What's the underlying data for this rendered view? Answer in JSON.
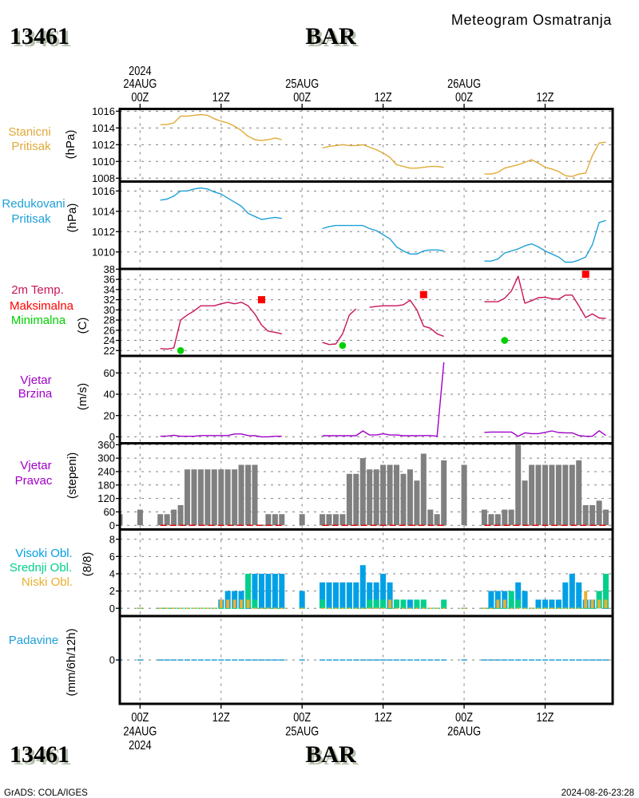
{
  "header": {
    "station_id": "13461",
    "station_name": "BAR",
    "title": "Meteogram Osmatranja"
  },
  "footer": {
    "station_id": "13461",
    "station_name": "BAR",
    "credit": "GrADS: COLA/IGES",
    "timestamp": "2024-08-26-23:28"
  },
  "chart_data": {
    "type": "line",
    "title": "Meteogram Osmatranja",
    "station": "13461 BAR",
    "grid_color": "#808080",
    "x": {
      "unit": "hours since 00Z 24AUG2024",
      "range": [
        -3,
        70
      ],
      "grid": true,
      "ticks": [
        {
          "hour": 0,
          "time": "00Z",
          "date": "24AUG",
          "year": "2024"
        },
        {
          "hour": 12,
          "time": "12Z",
          "date": "",
          "year": ""
        },
        {
          "hour": 24,
          "time": "00Z",
          "date": "25AUG",
          "year": ""
        },
        {
          "hour": 36,
          "time": "12Z",
          "date": "",
          "year": ""
        },
        {
          "hour": 48,
          "time": "00Z",
          "date": "26AUG",
          "year": ""
        },
        {
          "hour": 60,
          "time": "12Z",
          "date": "",
          "year": ""
        }
      ]
    },
    "hours": [
      -3,
      0,
      3,
      4,
      5,
      6,
      7,
      8,
      9,
      10,
      11,
      12,
      13,
      14,
      15,
      16,
      17,
      18,
      19,
      20,
      21,
      24,
      27,
      28,
      29,
      30,
      31,
      32,
      33,
      34,
      35,
      36,
      37,
      38,
      39,
      40,
      41,
      42,
      43,
      44,
      45,
      48,
      51,
      52,
      53,
      54,
      55,
      56,
      57,
      58,
      59,
      60,
      61,
      62,
      63,
      64,
      65,
      66,
      67,
      68,
      69
    ],
    "panels": [
      {
        "id": "station-pressure",
        "labels": [
          {
            "text": "Stanicni",
            "color": "#e0aa38"
          },
          {
            "text": "Pritisak",
            "color": "#e0aa38"
          }
        ],
        "unit": "(hPa)",
        "ylim": [
          1007.6,
          1016.27
        ],
        "ticks": [
          1016,
          1014,
          1012,
          1010,
          1008
        ],
        "series": [
          {
            "id": "station-pressure",
            "name": "Stanicni Pritisak",
            "type": "line",
            "color": "#e0aa38",
            "values": [
              null,
              null,
              1014.4,
              1014.4,
              1014.6,
              1015.4,
              1015.4,
              1015.5,
              1015.6,
              1015.5,
              1015.1,
              1014.8,
              1014.6,
              1014.2,
              1013.7,
              1013.0,
              1012.6,
              1012.5,
              1012.6,
              1012.8,
              1012.6,
              null,
              1011.6,
              1011.8,
              1011.9,
              1012.0,
              1011.9,
              1011.9,
              1012.0,
              1011.7,
              1011.4,
              1011.0,
              1010.5,
              1009.6,
              1009.4,
              1009.2,
              1009.2,
              1009.3,
              1009.4,
              1009.4,
              1009.3,
              null,
              1008.5,
              1008.5,
              1008.7,
              1009.2,
              1009.4,
              1009.6,
              1009.9,
              1010.2,
              1009.8,
              1009.3,
              1009.1,
              1008.8,
              1008.3,
              1008.2,
              1008.5,
              1008.6,
              1010.7,
              1012.2,
              1012.3
            ]
          }
        ]
      },
      {
        "id": "sea-level-pressure",
        "labels": [
          {
            "text": "Redukovani",
            "color": "#1ea0d8"
          },
          {
            "text": "Pritisak",
            "color": "#1ea0d8"
          }
        ],
        "unit": "(hPa)",
        "ylim": [
          1008.33,
          1016.93
        ],
        "ticks": [
          1016,
          1014,
          1012,
          1010
        ],
        "series": [
          {
            "id": "sea-level-pressure",
            "name": "Redukovani Pritisak",
            "type": "line",
            "color": "#1ea0d8",
            "values": [
              null,
              null,
              1015.1,
              1015.2,
              1015.5,
              1016.0,
              1016.0,
              1016.2,
              1016.3,
              1016.2,
              1015.9,
              1015.7,
              1015.3,
              1014.9,
              1014.5,
              1013.8,
              1013.5,
              1013.2,
              1013.3,
              1013.4,
              1013.3,
              null,
              1012.3,
              1012.5,
              1012.6,
              1012.6,
              1012.6,
              1012.6,
              1012.6,
              1012.3,
              1012.1,
              1011.7,
              1011.3,
              1010.5,
              1010.1,
              1009.8,
              1009.8,
              1010.1,
              1010.2,
              1010.2,
              1010.1,
              null,
              1009.1,
              1009.1,
              1009.3,
              1009.9,
              1010.1,
              1010.3,
              1010.6,
              1010.8,
              1010.5,
              1010.1,
              1009.8,
              1009.5,
              1009.0,
              1009.0,
              1009.2,
              1009.5,
              1010.7,
              1012.9,
              1013.1
            ]
          }
        ]
      },
      {
        "id": "temperature",
        "labels": [
          {
            "text": "2m Temp.",
            "color": "#c8145a"
          },
          {
            "text": "Maksimalna",
            "color": "#ff0000"
          },
          {
            "text": "Minimalna",
            "color": "#00d000"
          }
        ],
        "unit": "(C)",
        "ylim": [
          20.95,
          38.05
        ],
        "ticks": [
          38,
          36,
          34,
          32,
          30,
          28,
          26,
          24,
          22
        ],
        "series": [
          {
            "id": "temp-2m",
            "name": "2m Temp.",
            "type": "line",
            "color": "#c8145a",
            "values": [
              null,
              null,
              22.4,
              22.3,
              22.5,
              28.0,
              29.0,
              29.8,
              30.8,
              30.8,
              30.8,
              31.2,
              31.5,
              31.2,
              31.5,
              30.8,
              29.2,
              27.0,
              25.8,
              25.6,
              25.3,
              null,
              23.6,
              23.2,
              23.3,
              25.3,
              29.0,
              30.2,
              null,
              30.5,
              30.7,
              30.8,
              30.8,
              30.8,
              31.0,
              31.9,
              30.0,
              26.8,
              26.4,
              25.3,
              24.8,
              null,
              31.6,
              31.6,
              31.6,
              32.3,
              33.7,
              36.6,
              31.3,
              31.8,
              32.4,
              32.5,
              32.2,
              32.1,
              32.9,
              32.9,
              30.8,
              28.5,
              29.2,
              28.4,
              28.3
            ]
          },
          {
            "id": "temp-max",
            "name": "Maksimalna",
            "type": "points",
            "marker": "square",
            "color": "#ff0000",
            "points": [
              {
                "hour": 18,
                "value": 32
              },
              {
                "hour": 42,
                "value": 33
              },
              {
                "hour": 66,
                "value": 37
              }
            ]
          },
          {
            "id": "temp-min",
            "name": "Minimalna",
            "type": "points",
            "marker": "circle",
            "color": "#00d000",
            "points": [
              {
                "hour": 6,
                "value": 22
              },
              {
                "hour": 30,
                "value": 23
              },
              {
                "hour": 54,
                "value": 24
              }
            ]
          }
        ]
      },
      {
        "id": "wind-speed",
        "labels": [
          {
            "text": "Vjetar",
            "color": "#a000c8"
          },
          {
            "text": "Brzina",
            "color": "#a000c8"
          }
        ],
        "unit": "(m/s)",
        "ylim": [
          -6.1,
          76.0
        ],
        "ticks": [
          60,
          40,
          20,
          0
        ],
        "series": [
          {
            "id": "wind-speed",
            "name": "Vjetar Brzina",
            "type": "line",
            "color": "#a000c8",
            "values": [
              null,
              null,
              0.5,
              0.7,
              1.5,
              0.5,
              0.5,
              0.5,
              1.2,
              1.2,
              1.2,
              1.2,
              1.2,
              2.7,
              2.7,
              1.2,
              1.0,
              0.0,
              0.0,
              0.5,
              0.5,
              null,
              1.0,
              1.0,
              1.0,
              1.0,
              1.0,
              1.0,
              5.5,
              1.7,
              1.7,
              2.8,
              1.7,
              1.7,
              1.0,
              1.0,
              1.0,
              1.2,
              1.2,
              0.5,
              70.0,
              null,
              4.2,
              4.5,
              4.5,
              4.5,
              4.5,
              0.5,
              3.7,
              3.0,
              3.0,
              4.2,
              5.5,
              4.0,
              3.7,
              3.7,
              1.2,
              0.5,
              0.5,
              5.7,
              1.2
            ]
          }
        ]
      },
      {
        "id": "wind-direction",
        "labels": [
          {
            "text": "Vjetar",
            "color": "#a000c8"
          },
          {
            "text": "Pravac",
            "color": "#a000c8"
          }
        ],
        "unit": "(stepeni)",
        "ylim": [
          -18.6,
          366.4
        ],
        "ticks": [
          360,
          300,
          240,
          180,
          120,
          60,
          0
        ],
        "series": [
          {
            "id": "wind-direction",
            "name": "Vjetar Pravac",
            "type": "bar",
            "color": "#808080",
            "values": [
              50,
              70,
              50,
              50,
              70,
              90,
              250,
              250,
              250,
              250,
              250,
              250,
              250,
              250,
              270,
              270,
              270,
              0,
              50,
              50,
              50,
              50,
              50,
              50,
              50,
              50,
              230,
              230,
              300,
              250,
              250,
              270,
              270,
              270,
              230,
              250,
              200,
              320,
              70,
              50,
              290,
              270,
              70,
              50,
              50,
              70,
              70,
              360,
              200,
              270,
              270,
              270,
              270,
              270,
              270,
              270,
              290,
              90,
              90,
              110,
              70
            ]
          },
          {
            "id": "wind-zero",
            "name": "zero reference",
            "type": "dashed-line",
            "color": "#e00000",
            "values": [
              null,
              null,
              0,
              0,
              0,
              0,
              0,
              0,
              0,
              0,
              0,
              0,
              0,
              0,
              0,
              0,
              0,
              0,
              0,
              0,
              0,
              null,
              0,
              0,
              0,
              0,
              0,
              0,
              0,
              0,
              0,
              0,
              0,
              0,
              0,
              0,
              0,
              0,
              0,
              0,
              0,
              null,
              0,
              0,
              0,
              0,
              0,
              0,
              0,
              0,
              0,
              0,
              0,
              0,
              0,
              0,
              0,
              0,
              0,
              0,
              0
            ]
          }
        ]
      },
      {
        "id": "clouds",
        "labels": [
          {
            "text": "Visoki Obl.",
            "color": "#00a0e6"
          },
          {
            "text": "Srednji Obl.",
            "color": "#00d08c"
          },
          {
            "text": "Niski Obl.",
            "color": "#e8b030"
          }
        ],
        "unit": "(8/8)",
        "ylim": [
          -0.9,
          9.13
        ],
        "ticks": [
          8,
          6,
          4,
          2,
          0
        ],
        "series": [
          {
            "id": "high",
            "name": "Visoki Obl.",
            "type": "bar",
            "color": "#00a0e6",
            "values": [
              0,
              0,
              0,
              0,
              0,
              0,
              0,
              0,
              0,
              0,
              0,
              1,
              2,
              2,
              2,
              0,
              4,
              4,
              4,
              4,
              4,
              2,
              3,
              3,
              3,
              3,
              3,
              3,
              5,
              3,
              3,
              4,
              3,
              1,
              0,
              1,
              0,
              0,
              0,
              0,
              0,
              0,
              0,
              2,
              2,
              2,
              0,
              3,
              2,
              0,
              1,
              1,
              1,
              1,
              3,
              4,
              3,
              1,
              1,
              1,
              0
            ]
          },
          {
            "id": "medium",
            "name": "Srednji Obl.",
            "type": "bar",
            "color": "#00d08c",
            "values": [
              0,
              0,
              0,
              0,
              0,
              0,
              0,
              0,
              0,
              0,
              0,
              0,
              0,
              0,
              0,
              4,
              1,
              0,
              0,
              0,
              0,
              0,
              1,
              0,
              0,
              0,
              0,
              0,
              0,
              1,
              1,
              1,
              0,
              1,
              1,
              0,
              1,
              1,
              0,
              0,
              1,
              0,
              0,
              0,
              0,
              0,
              2,
              1,
              0,
              0,
              0,
              0,
              0,
              0,
              0,
              0,
              0,
              0,
              0,
              2,
              4
            ]
          },
          {
            "id": "low",
            "name": "Niski Obl.",
            "type": "bar",
            "color": "#e8b030",
            "values": [
              0,
              0,
              0,
              0,
              0,
              0,
              0,
              0,
              0,
              0,
              0,
              1,
              1,
              1,
              1,
              1,
              0,
              0,
              0,
              0,
              0,
              0,
              0,
              0,
              0,
              0,
              0,
              0,
              0,
              0,
              0,
              0,
              1,
              0,
              0,
              0,
              0,
              0,
              0,
              0,
              0,
              0,
              0,
              0,
              1,
              1,
              0,
              0,
              0,
              0,
              0,
              0,
              0,
              0,
              0,
              0,
              0,
              2,
              1,
              1,
              1
            ]
          }
        ]
      },
      {
        "id": "precipitation",
        "labels": [
          {
            "text": "Padavine",
            "color": "#1ea0d8"
          }
        ],
        "unit": "(mm/6h/12h)",
        "ylim": [
          -1,
          1
        ],
        "ticks": [
          0
        ],
        "series": [
          {
            "id": "precip",
            "name": "Padavine",
            "type": "bar",
            "color": "#1ea0d8",
            "values": [
              0,
              0,
              0,
              0,
              0,
              0,
              0,
              0,
              0,
              0,
              0,
              0,
              0,
              0,
              0,
              0,
              0,
              0,
              0,
              0,
              0,
              0,
              0,
              0,
              0,
              0,
              0,
              0,
              0,
              0,
              0,
              0,
              0,
              0,
              0,
              0,
              0,
              0,
              0,
              0,
              0,
              0,
              0,
              0,
              0,
              0,
              0,
              0,
              0,
              0,
              0,
              0,
              0,
              0,
              0,
              0,
              0,
              0,
              0,
              0,
              0
            ]
          }
        ]
      }
    ]
  }
}
